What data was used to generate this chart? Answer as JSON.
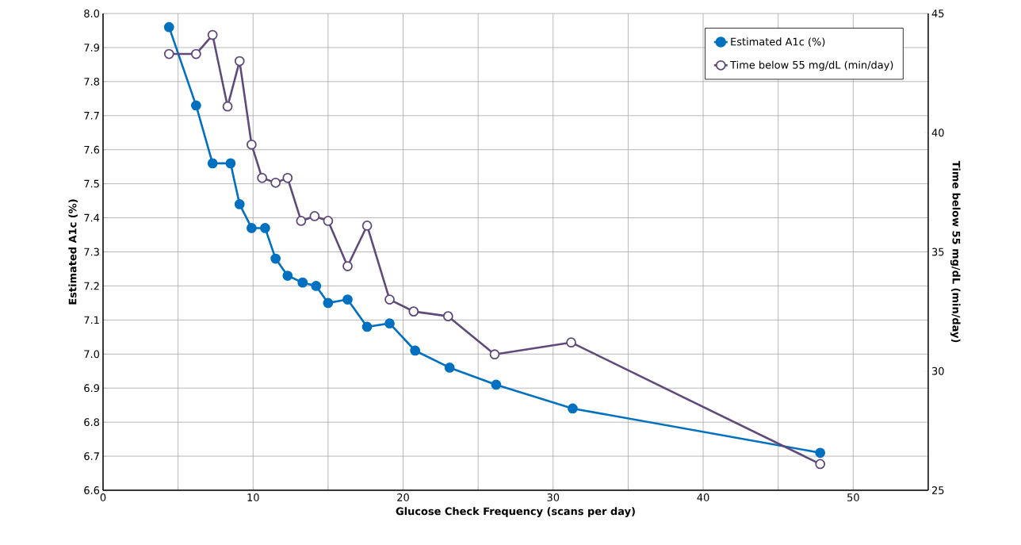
{
  "chart_data": {
    "type": "line",
    "xlabel": "Glucose Check Frequency (scans per day)",
    "ylabel": "Estimated A1c (%)",
    "y2label": "Time below 55 mg/dL (min/day)",
    "xlim": [
      0,
      55
    ],
    "xticks": [
      0,
      {
        "value": 5,
        "label": null
      },
      10,
      {
        "value": 15,
        "label": null
      },
      20,
      {
        "value": 25,
        "label": null
      },
      30,
      {
        "value": 35,
        "label": null
      },
      40,
      {
        "value": 45,
        "label": null
      },
      50
    ],
    "ylim": [
      6.6,
      8.0
    ],
    "yticks": [
      {
        "value": 6.6,
        "label": "6.6"
      },
      {
        "value": 6.7,
        "label": "6.7"
      },
      {
        "value": 6.8,
        "label": "6.8"
      },
      {
        "value": 6.9,
        "label": "6.9"
      },
      {
        "value": 7.0,
        "label": "7.0"
      },
      {
        "value": 7.1,
        "label": "7.1"
      },
      {
        "value": 7.2,
        "label": "7.2"
      },
      {
        "value": 7.3,
        "label": "7.3"
      },
      {
        "value": 7.4,
        "label": "7.4"
      },
      {
        "value": 7.5,
        "label": "7.5"
      },
      {
        "value": 7.6,
        "label": "7.6"
      },
      {
        "value": 7.7,
        "label": "7.7"
      },
      {
        "value": 7.8,
        "label": "7.8"
      },
      {
        "value": 7.9,
        "label": "7.9"
      },
      {
        "value": 8.0,
        "label": "8.0"
      }
    ],
    "y2lim": [
      25,
      45
    ],
    "y2ticks": [
      25,
      30,
      35,
      40,
      45
    ],
    "grid": true,
    "legend": "top right",
    "marker": "circle",
    "line_style": "solid",
    "series": [
      {
        "name": "Estimated A1c (%)",
        "color": "#0070c0",
        "x": [
          4.4,
          6.2,
          7.3,
          8.5,
          9.1,
          9.9,
          10.8,
          11.5,
          12.3,
          13.3,
          14.2,
          15.0,
          16.3,
          17.6,
          19.1,
          20.8,
          23.1,
          26.2,
          31.3,
          47.8
        ],
        "values": [
          7.96,
          7.73,
          7.56,
          7.56,
          7.44,
          7.37,
          7.37,
          7.28,
          7.23,
          7.21,
          7.2,
          7.15,
          7.16,
          7.08,
          7.09,
          7.01,
          6.96,
          6.91,
          6.84,
          6.71
        ]
      },
      {
        "name": "Time below 55 mg/dL (min/day)",
        "color": "#604a7b",
        "axis": "y2",
        "x": [
          4.4,
          6.2,
          7.3,
          8.3,
          9.1,
          9.9,
          10.6,
          11.5,
          12.3,
          13.2,
          14.1,
          15.0,
          16.3,
          17.6,
          19.1,
          20.7,
          23.0,
          26.1,
          31.2,
          47.8
        ],
        "values": [
          43.3,
          43.3,
          44.1,
          41.1,
          43.0,
          39.5,
          38.1,
          37.9,
          38.1,
          36.3,
          36.5,
          36.3,
          34.4,
          36.1,
          33.0,
          32.5,
          32.3,
          30.7,
          31.2,
          26.1
        ]
      }
    ]
  }
}
